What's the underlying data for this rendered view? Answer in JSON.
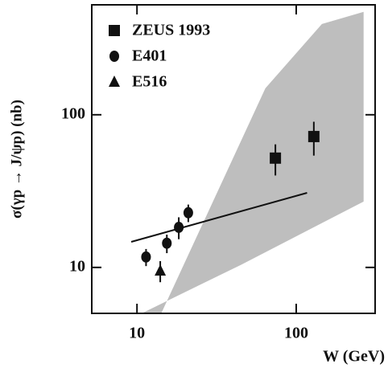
{
  "chart_data": {
    "type": "scatter",
    "x_label": "W (GeV)",
    "y_label": "σ(γp → J/ψp) (nb)",
    "xlim": [
      5.2,
      313
    ],
    "ylim": [
      5.0,
      525
    ],
    "xscale": "log",
    "yscale": "log",
    "xticks": [
      10,
      100
    ],
    "yticks": [
      10,
      100
    ],
    "band": {
      "color": "#a8a8a8",
      "x": [
        10.7,
        45,
        265,
        265,
        145,
        64,
        14.2
      ],
      "y": [
        5.0,
        10.4,
        27,
        472,
        393,
        149,
        5.0
      ]
    },
    "line": {
      "color": "#111111",
      "x": [
        9.2,
        117
      ],
      "y": [
        14.7,
        30.8
      ]
    },
    "series": [
      {
        "name": "ZEUS 1993",
        "marker": "square",
        "color": "#111111",
        "x": [
          74,
          129
        ],
        "values": [
          52,
          72
        ],
        "errors": [
          12,
          18
        ]
      },
      {
        "name": "E401",
        "marker": "circle",
        "color": "#111111",
        "x": [
          11.4,
          15.4,
          18.3,
          21
        ],
        "values": [
          11.7,
          14.4,
          18.3,
          22.8
        ],
        "errors": [
          1.5,
          2,
          3,
          3
        ]
      },
      {
        "name": "E516",
        "marker": "triangle",
        "color": "#111111",
        "x": [
          14
        ],
        "values": [
          9.5
        ],
        "errors": [
          1.5
        ]
      }
    ]
  }
}
